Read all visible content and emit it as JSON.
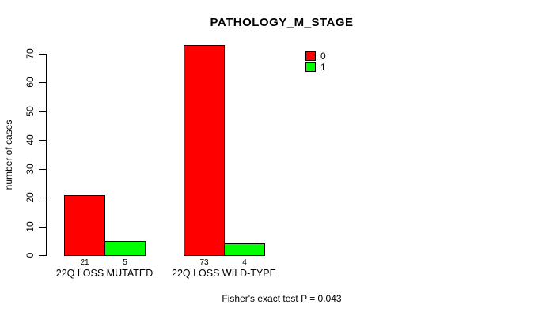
{
  "chart_data": {
    "type": "bar",
    "title": "PATHOLOGY_M_STAGE",
    "categories": [
      "22Q LOSS MUTATED",
      "22Q LOSS WILD-TYPE"
    ],
    "series": [
      {
        "name": "0",
        "color": "#ff0000",
        "values": [
          21,
          73
        ]
      },
      {
        "name": "1",
        "color": "#00ff00",
        "values": [
          5,
          4
        ]
      }
    ],
    "xlabel": "",
    "ylabel": "number of cases",
    "ylim": [
      0,
      70
    ],
    "yticks": [
      0,
      10,
      20,
      30,
      40,
      50,
      60,
      70
    ],
    "grid": false,
    "legend_position": "top-right",
    "bar_value_labels": true,
    "annotation": "Fisher's exact test P = 0.043"
  },
  "colors": {
    "background": "#ffffff",
    "axis": "#000000",
    "bar_border": "#000000",
    "series_0": "#ff0000",
    "series_1": "#00ff00"
  }
}
